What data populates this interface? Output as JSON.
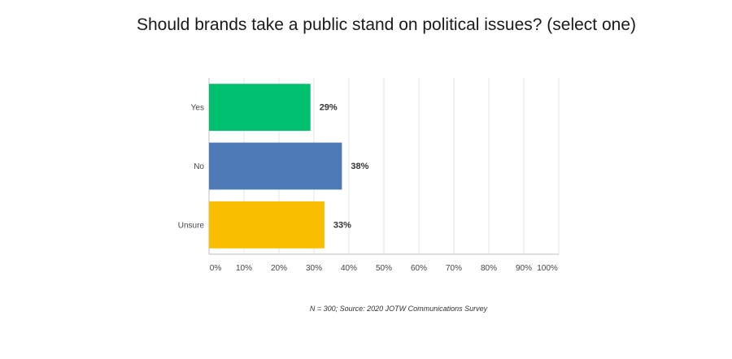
{
  "chart_data": {
    "type": "bar",
    "orientation": "horizontal",
    "title": "Should brands take a public stand on political issues? (select one)",
    "categories": [
      "Yes",
      "No",
      "Unsure"
    ],
    "values": [
      29,
      38,
      33
    ],
    "value_labels": [
      "29%",
      "38%",
      "33%"
    ],
    "colors": [
      "#00bf6f",
      "#4e7ab5",
      "#f9be00"
    ],
    "xlim": [
      0,
      100
    ],
    "x_ticks": [
      "0%",
      "10%",
      "20%",
      "30%",
      "40%",
      "50%",
      "60%",
      "70%",
      "80%",
      "90%",
      "100%"
    ],
    "grid": true,
    "source": "N = 300; Source: 2020 JOTW Communications Survey"
  }
}
